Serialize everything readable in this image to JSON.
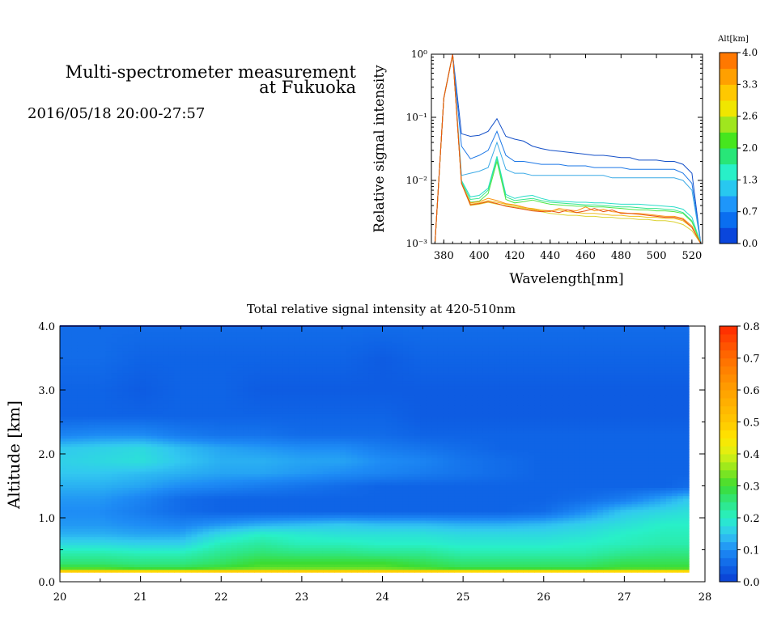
{
  "header": {
    "title_line1": "Multi-spectrometer measurement",
    "title_line2": "at Fukuoka",
    "datetime": "2016/05/18 20:00-27:57"
  },
  "chart_data": [
    {
      "type": "line",
      "title": "",
      "xlabel": "Wavelength[nm]",
      "ylabel": "Relative signal intensity",
      "xlim": [
        373,
        526
      ],
      "ylim": [
        0.001,
        1
      ],
      "yscale": "log",
      "x_ticks": [
        "380",
        "400",
        "420",
        "440",
        "460",
        "480",
        "500",
        "520"
      ],
      "y_ticks": [
        "10⁻³",
        "10⁻²",
        "10⁻¹",
        "10⁰"
      ],
      "x": [
        375,
        380,
        385,
        390,
        395,
        400,
        405,
        410,
        415,
        420,
        425,
        430,
        435,
        440,
        445,
        450,
        455,
        460,
        465,
        470,
        475,
        480,
        485,
        490,
        495,
        500,
        505,
        510,
        515,
        520,
        525
      ],
      "colorbar": {
        "label": "Alt[km]",
        "ticks": [
          "0.0",
          "0.7",
          "1.3",
          "2.0",
          "2.6",
          "3.3",
          "4.0"
        ],
        "colors": [
          "#0a46dc",
          "#0a6ef0",
          "#1e96fa",
          "#28c8f0",
          "#28f0c8",
          "#28e678",
          "#46e61e",
          "#a0e61e",
          "#f0e600",
          "#ffc800",
          "#ffa000",
          "#ff7800"
        ]
      },
      "series": [
        {
          "color": "#1450c8",
          "values": [
            0.001,
            0.2,
            1.0,
            0.055,
            0.05,
            0.052,
            0.06,
            0.095,
            0.05,
            0.045,
            0.042,
            0.035,
            0.032,
            0.03,
            0.029,
            0.028,
            0.027,
            0.026,
            0.025,
            0.025,
            0.024,
            0.023,
            0.023,
            0.021,
            0.021,
            0.021,
            0.02,
            0.02,
            0.018,
            0.013,
            0.001
          ]
        },
        {
          "color": "#1e78e6",
          "values": [
            0.001,
            0.2,
            1.0,
            0.035,
            0.022,
            0.025,
            0.03,
            0.06,
            0.025,
            0.02,
            0.02,
            0.019,
            0.018,
            0.018,
            0.018,
            0.017,
            0.017,
            0.017,
            0.016,
            0.016,
            0.016,
            0.016,
            0.015,
            0.015,
            0.015,
            0.015,
            0.015,
            0.015,
            0.013,
            0.009,
            0.001
          ]
        },
        {
          "color": "#3caae6",
          "values": [
            0.001,
            0.2,
            1.0,
            0.012,
            0.013,
            0.014,
            0.016,
            0.04,
            0.015,
            0.013,
            0.013,
            0.012,
            0.012,
            0.012,
            0.012,
            0.012,
            0.012,
            0.012,
            0.012,
            0.012,
            0.011,
            0.011,
            0.011,
            0.011,
            0.011,
            0.011,
            0.011,
            0.011,
            0.01,
            0.007,
            0.001
          ]
        },
        {
          "color": "#28dcc8",
          "values": [
            0.001,
            0.2,
            1.0,
            0.01,
            0.0055,
            0.0058,
            0.0075,
            0.024,
            0.006,
            0.0052,
            0.0056,
            0.0058,
            0.0052,
            0.0048,
            0.0047,
            0.0046,
            0.0045,
            0.0045,
            0.0044,
            0.0044,
            0.0043,
            0.0042,
            0.0042,
            0.0042,
            0.0041,
            0.004,
            0.0039,
            0.0038,
            0.0035,
            0.0026,
            0.001
          ]
        },
        {
          "color": "#32e68c",
          "values": [
            0.001,
            0.2,
            1.0,
            0.0095,
            0.005,
            0.0052,
            0.007,
            0.022,
            0.0055,
            0.0048,
            0.005,
            0.0052,
            0.0048,
            0.0045,
            0.0044,
            0.0043,
            0.0042,
            0.0041,
            0.0041,
            0.004,
            0.0039,
            0.0038,
            0.0038,
            0.0037,
            0.0036,
            0.0036,
            0.0035,
            0.0034,
            0.0031,
            0.0023,
            0.001
          ]
        },
        {
          "color": "#50e646",
          "values": [
            0.001,
            0.2,
            1.0,
            0.009,
            0.0045,
            0.0047,
            0.0062,
            0.02,
            0.005,
            0.0044,
            0.0046,
            0.0049,
            0.0045,
            0.0042,
            0.0041,
            0.004,
            0.0039,
            0.0039,
            0.0038,
            0.0038,
            0.0037,
            0.0036,
            0.0035,
            0.0034,
            0.0034,
            0.0033,
            0.0033,
            0.0032,
            0.003,
            0.0022,
            0.001
          ]
        },
        {
          "color": "#dcd232",
          "values": [
            0.001,
            0.2,
            1.0,
            0.009,
            0.004,
            0.0042,
            0.0045,
            0.0042,
            0.004,
            0.0038,
            0.0036,
            0.0034,
            0.0032,
            0.003,
            0.0029,
            0.0028,
            0.0028,
            0.0027,
            0.0027,
            0.0026,
            0.0026,
            0.0025,
            0.0025,
            0.0024,
            0.0024,
            0.0023,
            0.0023,
            0.0022,
            0.002,
            0.0016,
            0.001
          ]
        },
        {
          "color": "#f0be1e",
          "values": [
            0.001,
            0.2,
            1.0,
            0.009,
            0.0042,
            0.0044,
            0.0048,
            0.0045,
            0.0042,
            0.004,
            0.0037,
            0.0036,
            0.0034,
            0.0033,
            0.0034,
            0.0032,
            0.0031,
            0.003,
            0.003,
            0.0029,
            0.0028,
            0.0028,
            0.0027,
            0.0027,
            0.0026,
            0.0026,
            0.0025,
            0.0025,
            0.0023,
            0.0018,
            0.001
          ]
        },
        {
          "color": "#fa9614",
          "values": [
            0.001,
            0.2,
            1.0,
            0.009,
            0.0044,
            0.0046,
            0.0052,
            0.0048,
            0.0043,
            0.0041,
            0.0038,
            0.0035,
            0.0033,
            0.0032,
            0.0036,
            0.0034,
            0.0033,
            0.0038,
            0.0033,
            0.0035,
            0.0032,
            0.0031,
            0.003,
            0.003,
            0.0029,
            0.0028,
            0.0027,
            0.0027,
            0.0025,
            0.0019,
            0.001
          ]
        },
        {
          "color": "#e65014",
          "values": [
            0.001,
            0.2,
            1.0,
            0.009,
            0.0041,
            0.0043,
            0.0046,
            0.0043,
            0.0039,
            0.0037,
            0.0035,
            0.0033,
            0.0032,
            0.0033,
            0.0031,
            0.0034,
            0.0031,
            0.0033,
            0.0036,
            0.0032,
            0.0034,
            0.003,
            0.003,
            0.0029,
            0.0028,
            0.0027,
            0.0026,
            0.0026,
            0.0024,
            0.0018,
            0.001
          ]
        }
      ]
    },
    {
      "type": "heatmap",
      "title": "Total relative signal intensity at 420-510nm",
      "xlabel": "",
      "ylabel": "Altitude [km]",
      "xlim": [
        20,
        28
      ],
      "ylim": [
        0.0,
        4.0
      ],
      "x_ticks": [
        "20",
        "21",
        "22",
        "23",
        "24",
        "25",
        "26",
        "27",
        "28"
      ],
      "y_ticks": [
        "0.0",
        "1.0",
        "2.0",
        "3.0",
        "4.0"
      ],
      "data_extent_x": [
        20,
        27.8
      ],
      "data_extent_y": [
        0.15,
        4.0
      ],
      "x_nodes": [
        20,
        20.5,
        21,
        21.5,
        22,
        22.5,
        23,
        23.5,
        24,
        24.5,
        25,
        25.5,
        26,
        26.5,
        27,
        27.5,
        27.8
      ],
      "y_nodes": [
        0.15,
        0.18,
        0.22,
        0.3,
        0.45,
        0.6,
        0.75,
        0.9,
        1.1,
        1.3,
        1.5,
        1.7,
        1.9,
        2.1,
        2.3,
        2.6,
        3.0,
        3.5,
        4.0
      ],
      "z": [
        [
          0.7,
          0.7,
          0.7,
          0.7,
          0.7,
          0.7,
          0.7,
          0.7,
          0.7,
          0.7,
          0.7,
          0.7,
          0.7,
          0.7,
          0.7,
          0.7,
          0.7
        ],
        [
          0.4,
          0.4,
          0.38,
          0.38,
          0.4,
          0.4,
          0.4,
          0.4,
          0.4,
          0.4,
          0.38,
          0.38,
          0.38,
          0.38,
          0.38,
          0.38,
          0.38
        ],
        [
          0.3,
          0.3,
          0.28,
          0.28,
          0.3,
          0.32,
          0.32,
          0.32,
          0.32,
          0.3,
          0.28,
          0.28,
          0.28,
          0.28,
          0.3,
          0.3,
          0.3
        ],
        [
          0.26,
          0.26,
          0.25,
          0.25,
          0.27,
          0.3,
          0.3,
          0.3,
          0.3,
          0.28,
          0.26,
          0.26,
          0.26,
          0.26,
          0.28,
          0.28,
          0.28
        ],
        [
          0.22,
          0.22,
          0.21,
          0.21,
          0.24,
          0.26,
          0.25,
          0.25,
          0.24,
          0.24,
          0.22,
          0.22,
          0.22,
          0.22,
          0.24,
          0.25,
          0.25
        ],
        [
          0.17,
          0.17,
          0.16,
          0.16,
          0.21,
          0.23,
          0.21,
          0.21,
          0.2,
          0.2,
          0.19,
          0.19,
          0.19,
          0.2,
          0.21,
          0.22,
          0.22
        ],
        [
          0.13,
          0.13,
          0.12,
          0.12,
          0.17,
          0.2,
          0.19,
          0.18,
          0.18,
          0.18,
          0.17,
          0.17,
          0.17,
          0.18,
          0.2,
          0.21,
          0.21
        ],
        [
          0.11,
          0.11,
          0.1,
          0.09,
          0.11,
          0.13,
          0.14,
          0.15,
          0.14,
          0.14,
          0.13,
          0.13,
          0.14,
          0.16,
          0.18,
          0.2,
          0.2
        ],
        [
          0.1,
          0.1,
          0.08,
          0.06,
          0.05,
          0.05,
          0.05,
          0.05,
          0.05,
          0.05,
          0.05,
          0.05,
          0.06,
          0.1,
          0.15,
          0.17,
          0.18
        ],
        [
          0.11,
          0.11,
          0.09,
          0.06,
          0.05,
          0.05,
          0.05,
          0.05,
          0.05,
          0.05,
          0.05,
          0.05,
          0.05,
          0.06,
          0.08,
          0.12,
          0.15
        ],
        [
          0.13,
          0.13,
          0.12,
          0.1,
          0.09,
          0.08,
          0.07,
          0.06,
          0.05,
          0.05,
          0.05,
          0.05,
          0.05,
          0.05,
          0.05,
          0.05,
          0.06
        ],
        [
          0.15,
          0.15,
          0.14,
          0.13,
          0.12,
          0.12,
          0.11,
          0.1,
          0.09,
          0.08,
          0.07,
          0.06,
          0.05,
          0.05,
          0.05,
          0.05,
          0.05
        ],
        [
          0.16,
          0.17,
          0.18,
          0.15,
          0.13,
          0.13,
          0.12,
          0.12,
          0.1,
          0.09,
          0.07,
          0.06,
          0.05,
          0.05,
          0.05,
          0.05,
          0.05
        ],
        [
          0.15,
          0.16,
          0.17,
          0.14,
          0.12,
          0.11,
          0.1,
          0.1,
          0.08,
          0.07,
          0.06,
          0.05,
          0.05,
          0.05,
          0.05,
          0.05,
          0.05
        ],
        [
          0.09,
          0.1,
          0.1,
          0.08,
          0.07,
          0.07,
          0.06,
          0.06,
          0.06,
          0.05,
          0.05,
          0.05,
          0.05,
          0.05,
          0.05,
          0.05,
          0.05
        ],
        [
          0.05,
          0.05,
          0.05,
          0.05,
          0.05,
          0.05,
          0.05,
          0.05,
          0.05,
          0.04,
          0.04,
          0.04,
          0.04,
          0.04,
          0.04,
          0.04,
          0.04
        ],
        [
          0.05,
          0.05,
          0.04,
          0.05,
          0.05,
          0.04,
          0.04,
          0.04,
          0.04,
          0.04,
          0.04,
          0.04,
          0.04,
          0.04,
          0.04,
          0.04,
          0.04
        ],
        [
          0.06,
          0.06,
          0.05,
          0.05,
          0.05,
          0.05,
          0.05,
          0.05,
          0.04,
          0.05,
          0.05,
          0.05,
          0.05,
          0.05,
          0.05,
          0.05,
          0.05
        ],
        [
          0.06,
          0.06,
          0.06,
          0.06,
          0.06,
          0.06,
          0.06,
          0.06,
          0.06,
          0.06,
          0.06,
          0.06,
          0.06,
          0.06,
          0.06,
          0.06,
          0.06
        ]
      ],
      "colorbar": {
        "label": "",
        "ticks": [
          "0.0",
          "0.1",
          "0.2",
          "0.3",
          "0.4",
          "0.5",
          "0.6",
          "0.7",
          "0.8"
        ],
        "stops": [
          [
            0.0,
            "#0a3cd2"
          ],
          [
            0.05,
            "#0f64e6"
          ],
          [
            0.1,
            "#1e8cf5"
          ],
          [
            0.15,
            "#32c8f0"
          ],
          [
            0.2,
            "#28f0c8"
          ],
          [
            0.25,
            "#2ee682"
          ],
          [
            0.3,
            "#3cdc32"
          ],
          [
            0.35,
            "#8ce61e"
          ],
          [
            0.4,
            "#dcf014"
          ],
          [
            0.45,
            "#ffe600"
          ],
          [
            0.5,
            "#ffc800"
          ],
          [
            0.6,
            "#ffa000"
          ],
          [
            0.7,
            "#ff6e00"
          ],
          [
            0.8,
            "#ff2800"
          ]
        ]
      }
    }
  ]
}
